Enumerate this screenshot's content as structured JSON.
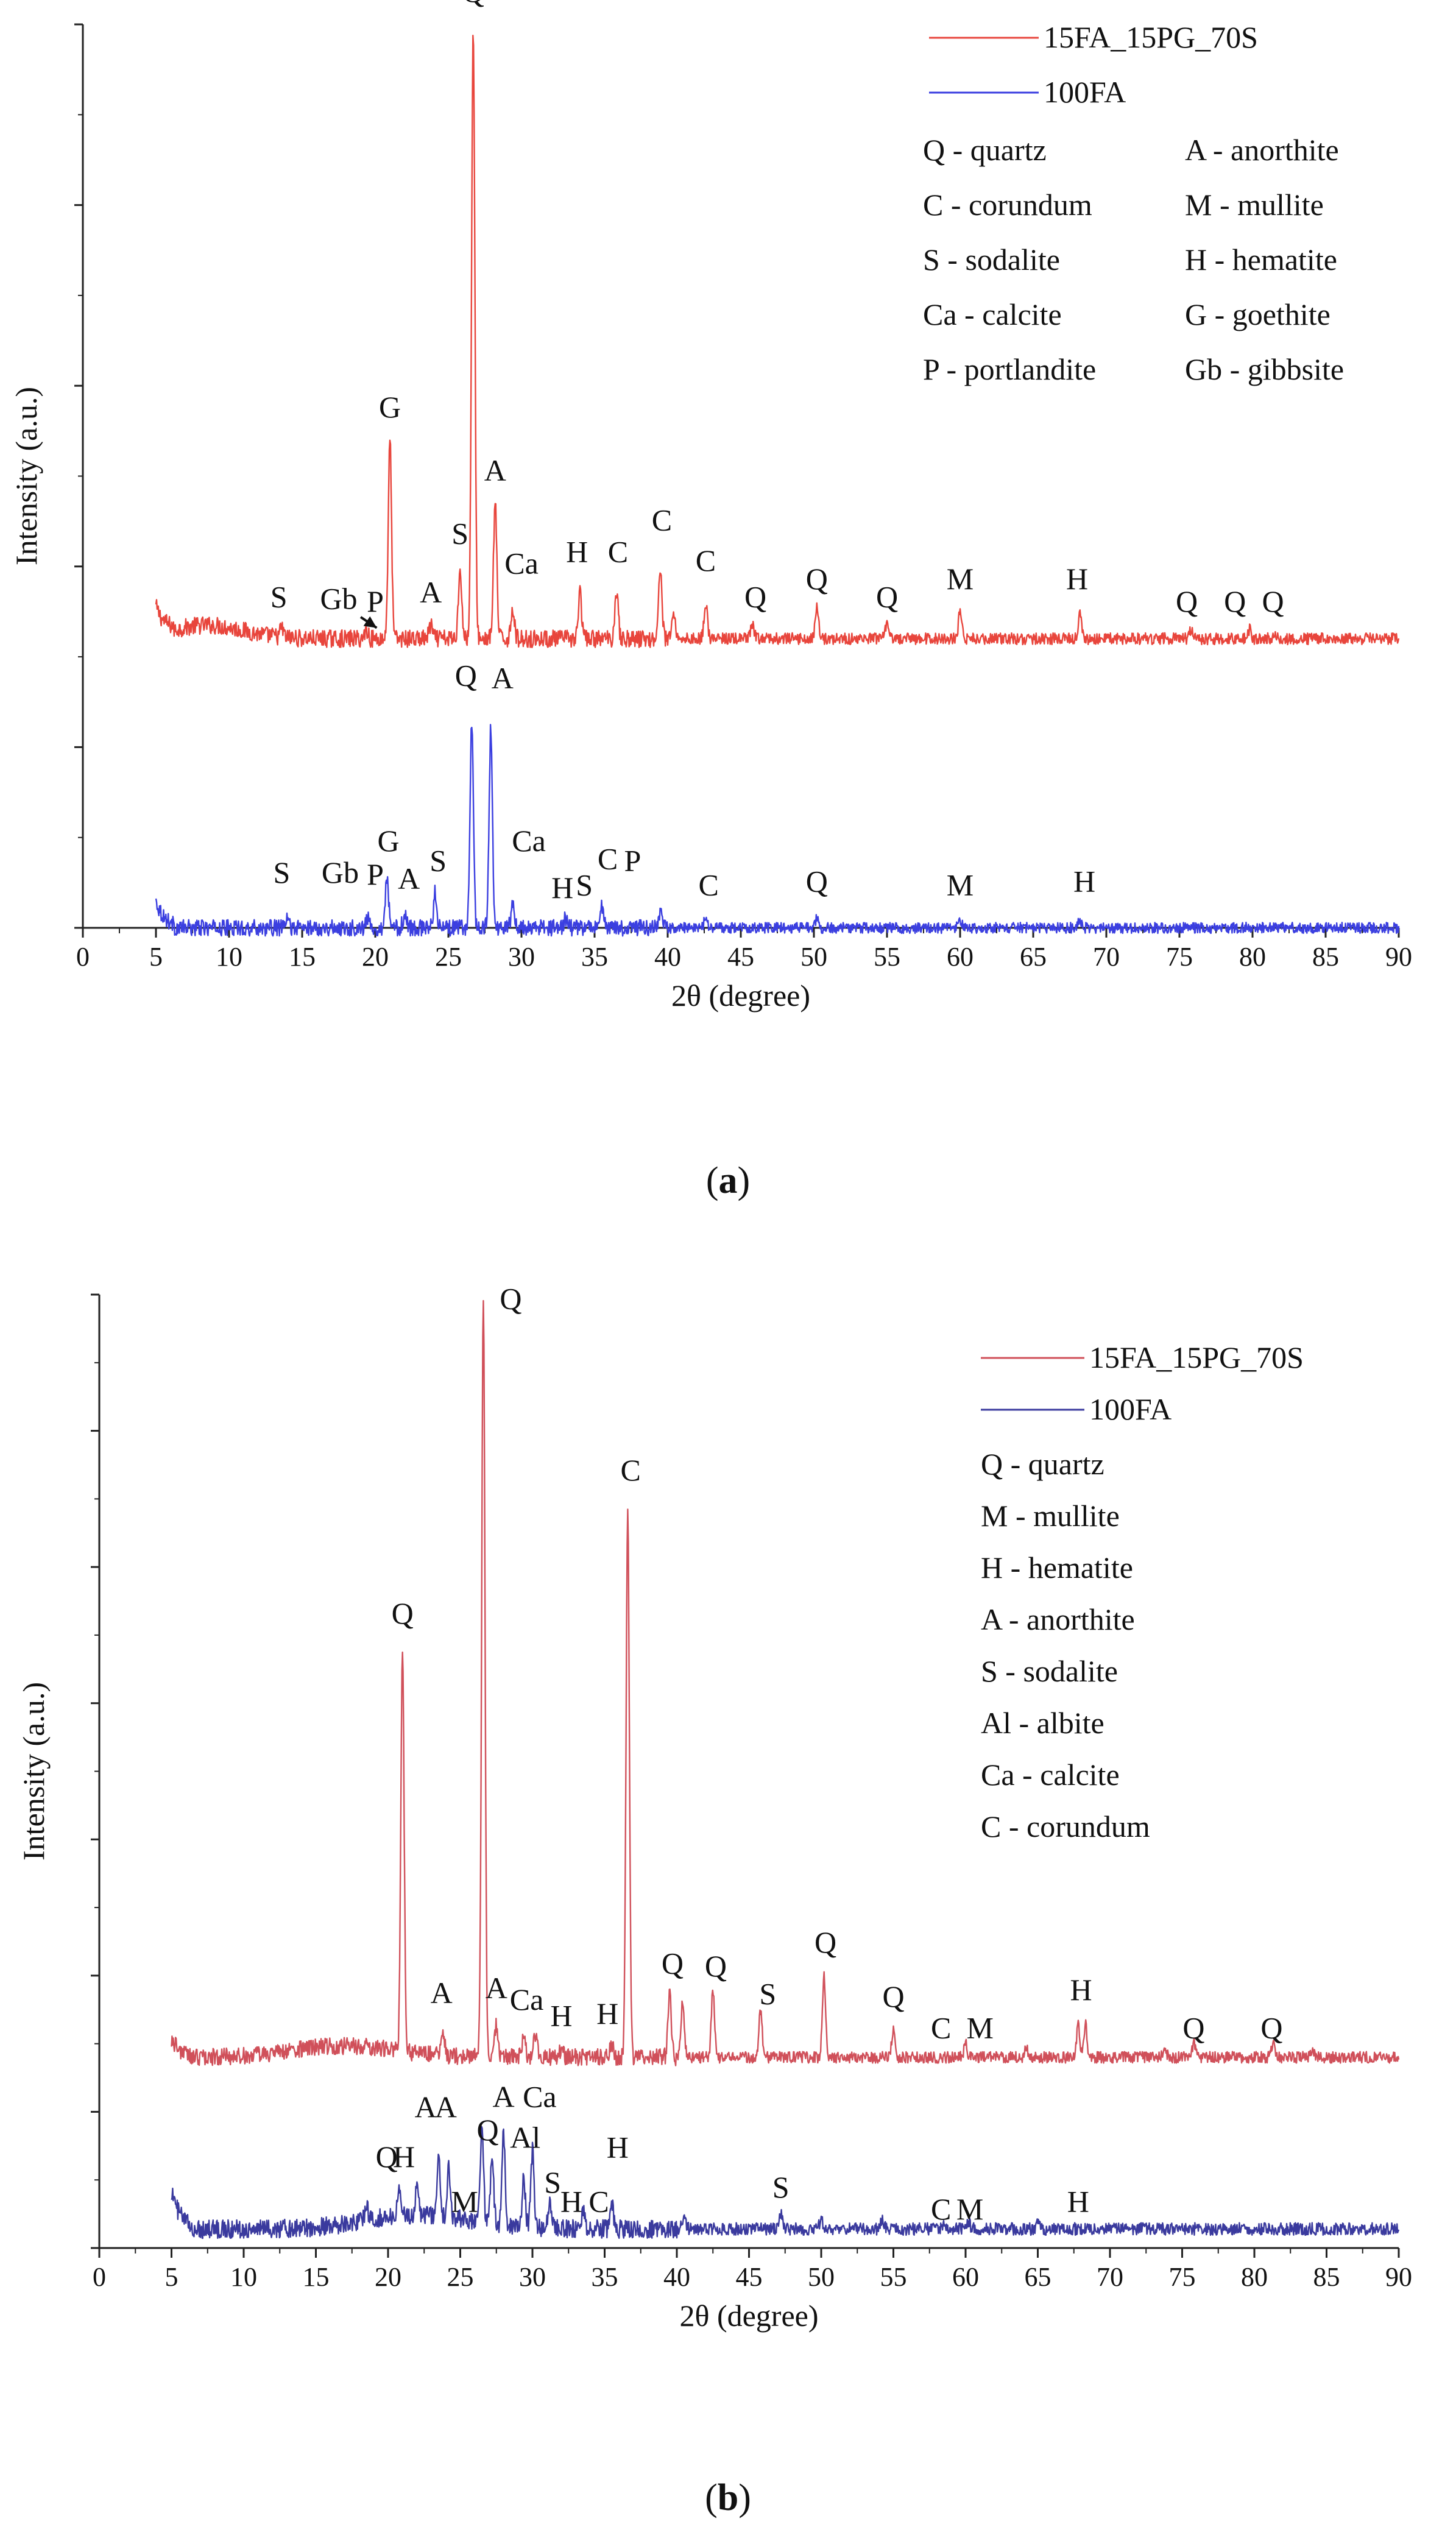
{
  "figure": {
    "caption_a_letter": "a",
    "caption_b_letter": "b",
    "open_paren": "(",
    "close_paren": ")"
  },
  "chart_data": [
    {
      "panel": "a",
      "type": "line",
      "xlabel": "2θ (degree)",
      "ylabel": "Intensity (a.u.)",
      "xlim": [
        0,
        90
      ],
      "ylim": [
        0,
        100
      ],
      "x_ticks": [
        0,
        5,
        10,
        15,
        20,
        25,
        30,
        35,
        40,
        45,
        50,
        55,
        60,
        65,
        70,
        75,
        80,
        85,
        90
      ],
      "grid": false,
      "legend_position": "top-right",
      "colors": {
        "15FA_15PG_70S": "#e8453c",
        "100FA": "#3b3fe0"
      },
      "series": [
        {
          "name": "15FA_15PG_70S",
          "baseline": 32,
          "start_level": 35,
          "peaks": [
            {
              "x": 13.6,
              "h": 1.0
            },
            {
              "x": 19.4,
              "h": 1.0
            },
            {
              "x": 21.0,
              "h": 22.0
            },
            {
              "x": 23.8,
              "h": 1.5
            },
            {
              "x": 25.8,
              "h": 8.0
            },
            {
              "x": 26.7,
              "h": 67.0
            },
            {
              "x": 28.2,
              "h": 15.0
            },
            {
              "x": 29.4,
              "h": 3.5
            },
            {
              "x": 34.0,
              "h": 5.0
            },
            {
              "x": 36.5,
              "h": 5.5
            },
            {
              "x": 39.5,
              "h": 8.0
            },
            {
              "x": 40.4,
              "h": 3.0
            },
            {
              "x": 42.6,
              "h": 4.0
            },
            {
              "x": 45.8,
              "h": 1.5
            },
            {
              "x": 50.2,
              "h": 3.5
            },
            {
              "x": 55.0,
              "h": 1.5
            },
            {
              "x": 60.0,
              "h": 3.0
            },
            {
              "x": 68.2,
              "h": 3.0
            },
            {
              "x": 75.8,
              "h": 1.0
            },
            {
              "x": 79.8,
              "h": 1.0
            },
            {
              "x": 81.5,
              "h": 0.8
            }
          ]
        },
        {
          "name": "100FA",
          "baseline": 0,
          "start_level": 3,
          "peaks": [
            {
              "x": 14.0,
              "h": 1.0
            },
            {
              "x": 19.5,
              "h": 1.0
            },
            {
              "x": 20.8,
              "h": 5.5
            },
            {
              "x": 22.0,
              "h": 1.5
            },
            {
              "x": 24.1,
              "h": 4.0
            },
            {
              "x": 26.6,
              "h": 23.0
            },
            {
              "x": 27.9,
              "h": 22.0
            },
            {
              "x": 29.4,
              "h": 2.5
            },
            {
              "x": 33.0,
              "h": 1.0
            },
            {
              "x": 35.5,
              "h": 2.5
            },
            {
              "x": 39.5,
              "h": 1.5
            },
            {
              "x": 42.6,
              "h": 1.0
            },
            {
              "x": 50.2,
              "h": 1.0
            },
            {
              "x": 60.0,
              "h": 0.8
            },
            {
              "x": 68.2,
              "h": 0.8
            }
          ]
        }
      ],
      "peak_labels": [
        {
          "text": "Q",
          "x": 26.7,
          "y": 102.5
        },
        {
          "text": "G",
          "x": 21.0,
          "y": 56.5
        },
        {
          "text": "A",
          "x": 28.2,
          "y": 49.5
        },
        {
          "text": "S",
          "x": 25.8,
          "y": 42.5
        },
        {
          "text": "S",
          "x": 13.4,
          "y": 35.5
        },
        {
          "text": "Gb",
          "x": 17.5,
          "y": 35.3
        },
        {
          "text": "P",
          "x": 20.0,
          "y": 35.0
        },
        {
          "text": "A",
          "x": 23.8,
          "y": 36.0
        },
        {
          "text": "Ca",
          "x": 30.0,
          "y": 39.2
        },
        {
          "text": "H",
          "x": 33.8,
          "y": 40.5
        },
        {
          "text": "C",
          "x": 36.6,
          "y": 40.5
        },
        {
          "text": "C",
          "x": 39.6,
          "y": 44.0
        },
        {
          "text": "C",
          "x": 42.6,
          "y": 39.5
        },
        {
          "text": "Q",
          "x": 46.0,
          "y": 35.5
        },
        {
          "text": "Q",
          "x": 50.2,
          "y": 37.5
        },
        {
          "text": "Q",
          "x": 55.0,
          "y": 35.5
        },
        {
          "text": "M",
          "x": 60.0,
          "y": 37.5
        },
        {
          "text": "H",
          "x": 68.0,
          "y": 37.5
        },
        {
          "text": "Q",
          "x": 75.5,
          "y": 35.0
        },
        {
          "text": "Q",
          "x": 78.8,
          "y": 35.0
        },
        {
          "text": "Q",
          "x": 81.4,
          "y": 35.0
        },
        {
          "text": "Q",
          "x": 26.2,
          "y": 26.8
        },
        {
          "text": "A",
          "x": 28.7,
          "y": 26.5
        },
        {
          "text": "S",
          "x": 13.6,
          "y": 5.0
        },
        {
          "text": "Gb",
          "x": 17.6,
          "y": 5.0
        },
        {
          "text": "P",
          "x": 20.0,
          "y": 4.8
        },
        {
          "text": "G",
          "x": 20.9,
          "y": 8.5
        },
        {
          "text": "A",
          "x": 22.3,
          "y": 4.3
        },
        {
          "text": "S",
          "x": 24.3,
          "y": 6.3
        },
        {
          "text": "Ca",
          "x": 30.5,
          "y": 8.5
        },
        {
          "text": "H",
          "x": 32.8,
          "y": 3.3
        },
        {
          "text": "S",
          "x": 34.3,
          "y": 3.6
        },
        {
          "text": "C",
          "x": 35.9,
          "y": 6.5
        },
        {
          "text": "P",
          "x": 37.6,
          "y": 6.3
        },
        {
          "text": "C",
          "x": 42.8,
          "y": 3.6
        },
        {
          "text": "Q",
          "x": 50.2,
          "y": 4.0
        },
        {
          "text": "M",
          "x": 60.0,
          "y": 3.6
        },
        {
          "text": "H",
          "x": 68.5,
          "y": 4.0
        }
      ],
      "annotations": [
        {
          "type": "arrow",
          "from": [
            19.0,
            34.4
          ],
          "to": [
            20.1,
            33.2
          ]
        }
      ],
      "legend": {
        "series": [
          "15FA_15PG_70S",
          "100FA"
        ],
        "key_left": [
          "Q - quartz",
          "C - corundum",
          "S - sodalite",
          "Ca - calcite",
          "P - portlandite"
        ],
        "key_right": [
          "A - anorthite",
          "M - mullite",
          "H - hematite",
          "G - goethite",
          "Gb - gibbsite"
        ]
      }
    },
    {
      "panel": "b",
      "type": "line",
      "xlabel": "2θ (degree)",
      "ylabel": "Intensity (a.u.)",
      "xlim": [
        0,
        90
      ],
      "ylim": [
        0,
        100
      ],
      "x_ticks": [
        0,
        5,
        10,
        15,
        20,
        25,
        30,
        35,
        40,
        45,
        50,
        55,
        60,
        65,
        70,
        75,
        80,
        85,
        90
      ],
      "grid": false,
      "legend_position": "top-right",
      "colors": {
        "15FA_15PG_70S": "#d0505a",
        "100FA": "#3a3a9e"
      },
      "series": [
        {
          "name": "15FA_15PG_70S",
          "baseline": 20,
          "start_level": 22,
          "peaks": [
            {
              "x": 21.0,
              "h": 42.0
            },
            {
              "x": 23.8,
              "h": 2.5
            },
            {
              "x": 26.6,
              "h": 80.0
            },
            {
              "x": 27.5,
              "h": 3.5
            },
            {
              "x": 29.4,
              "h": 2.0
            },
            {
              "x": 30.2,
              "h": 2.5
            },
            {
              "x": 32.0,
              "h": 1.0
            },
            {
              "x": 35.5,
              "h": 1.5
            },
            {
              "x": 36.6,
              "h": 57.0
            },
            {
              "x": 39.5,
              "h": 7.0
            },
            {
              "x": 40.4,
              "h": 6.0
            },
            {
              "x": 42.5,
              "h": 7.0
            },
            {
              "x": 45.8,
              "h": 5.0
            },
            {
              "x": 50.2,
              "h": 8.5
            },
            {
              "x": 55.0,
              "h": 3.0
            },
            {
              "x": 60.0,
              "h": 1.5
            },
            {
              "x": 64.2,
              "h": 1.0
            },
            {
              "x": 67.8,
              "h": 3.5
            },
            {
              "x": 68.3,
              "h": 3.5
            },
            {
              "x": 73.8,
              "h": 0.8
            },
            {
              "x": 75.8,
              "h": 1.5
            },
            {
              "x": 81.3,
              "h": 1.5
            },
            {
              "x": 84.0,
              "h": 0.8
            }
          ]
        },
        {
          "name": "100FA",
          "baseline": 2,
          "start_level": 6,
          "peaks": [
            {
              "x": 18.5,
              "h": 1.5
            },
            {
              "x": 20.8,
              "h": 3.0
            },
            {
              "x": 22.0,
              "h": 3.0
            },
            {
              "x": 23.5,
              "h": 6.0
            },
            {
              "x": 24.2,
              "h": 5.0
            },
            {
              "x": 26.5,
              "h": 10.0
            },
            {
              "x": 27.2,
              "h": 7.0
            },
            {
              "x": 28.0,
              "h": 9.5
            },
            {
              "x": 29.4,
              "h": 5.0
            },
            {
              "x": 30.0,
              "h": 8.0
            },
            {
              "x": 31.2,
              "h": 3.0
            },
            {
              "x": 33.5,
              "h": 2.0
            },
            {
              "x": 35.5,
              "h": 2.5
            },
            {
              "x": 40.5,
              "h": 1.5
            },
            {
              "x": 47.2,
              "h": 1.5
            },
            {
              "x": 50.0,
              "h": 1.0
            },
            {
              "x": 54.2,
              "h": 1.0
            },
            {
              "x": 58.5,
              "h": 0.8
            },
            {
              "x": 60.2,
              "h": 0.8
            },
            {
              "x": 65.0,
              "h": 0.6
            }
          ]
        }
      ],
      "peak_labels": [
        {
          "text": "Q",
          "x": 28.5,
          "y": 98.5
        },
        {
          "text": "Q",
          "x": 21.0,
          "y": 65.5
        },
        {
          "text": "C",
          "x": 36.8,
          "y": 80.5
        },
        {
          "text": "A",
          "x": 23.7,
          "y": 25.7
        },
        {
          "text": "A",
          "x": 27.5,
          "y": 26.2
        },
        {
          "text": "Ca",
          "x": 29.6,
          "y": 25.0
        },
        {
          "text": "H",
          "x": 32.0,
          "y": 23.3
        },
        {
          "text": "H",
          "x": 35.2,
          "y": 23.5
        },
        {
          "text": "Q",
          "x": 39.7,
          "y": 28.8
        },
        {
          "text": "Q",
          "x": 42.7,
          "y": 28.5
        },
        {
          "text": "S",
          "x": 46.3,
          "y": 25.6
        },
        {
          "text": "Q",
          "x": 50.3,
          "y": 31.0
        },
        {
          "text": "Q",
          "x": 55.0,
          "y": 25.3
        },
        {
          "text": "C",
          "x": 58.3,
          "y": 22.0
        },
        {
          "text": "M",
          "x": 61.0,
          "y": 22.0
        },
        {
          "text": "H",
          "x": 68.0,
          "y": 26.0
        },
        {
          "text": "Q",
          "x": 75.8,
          "y": 22.0
        },
        {
          "text": "Q",
          "x": 81.2,
          "y": 22.0
        },
        {
          "text": "Q",
          "x": 19.9,
          "y": 8.5
        },
        {
          "text": "H",
          "x": 21.1,
          "y": 8.5
        },
        {
          "text": "A",
          "x": 22.6,
          "y": 13.7
        },
        {
          "text": "A",
          "x": 24.0,
          "y": 13.7
        },
        {
          "text": "M",
          "x": 25.3,
          "y": 3.8
        },
        {
          "text": "Q",
          "x": 26.9,
          "y": 11.3
        },
        {
          "text": "A",
          "x": 28.0,
          "y": 14.8
        },
        {
          "text": "Ca",
          "x": 30.5,
          "y": 14.8
        },
        {
          "text": "Al",
          "x": 29.5,
          "y": 10.5
        },
        {
          "text": "S",
          "x": 31.4,
          "y": 5.8
        },
        {
          "text": "H",
          "x": 32.7,
          "y": 3.8
        },
        {
          "text": "C",
          "x": 34.6,
          "y": 3.8
        },
        {
          "text": "H",
          "x": 35.9,
          "y": 9.5
        },
        {
          "text": "S",
          "x": 47.2,
          "y": 5.3
        },
        {
          "text": "C",
          "x": 58.3,
          "y": 3.0
        },
        {
          "text": "M",
          "x": 60.3,
          "y": 3.0
        },
        {
          "text": "H",
          "x": 67.8,
          "y": 3.8
        }
      ],
      "legend": {
        "series": [
          "15FA_15PG_70S",
          "100FA"
        ],
        "key": [
          "Q - quartz",
          "M - mullite",
          "H - hematite",
          "A - anorthite",
          "S - sodalite",
          "Al - albite",
          "Ca - calcite",
          "C - corundum"
        ]
      }
    }
  ]
}
